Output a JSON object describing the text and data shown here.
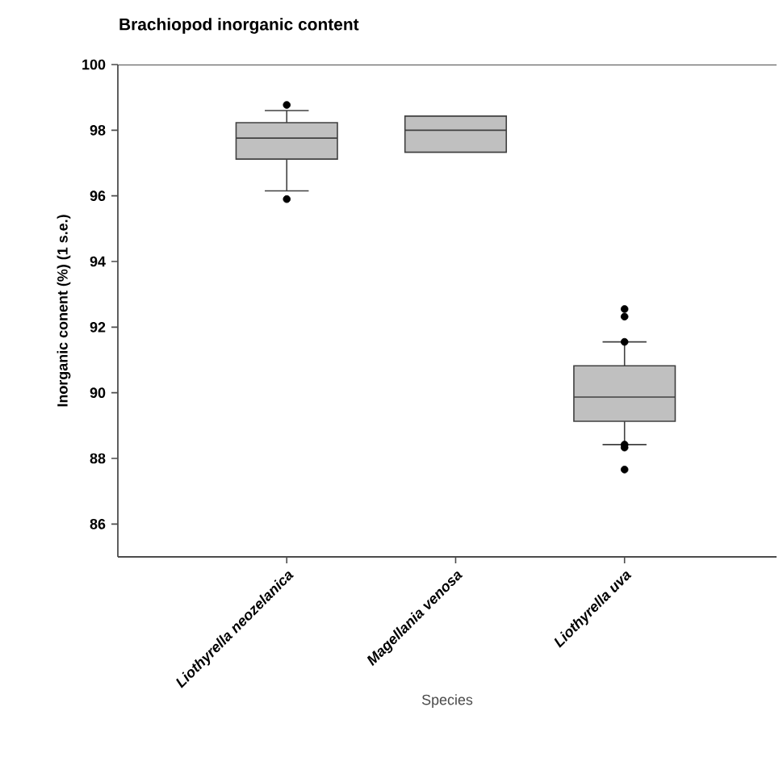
{
  "chart_data": {
    "type": "box",
    "title": "Brachiopod inorganic content",
    "xlabel": "Species",
    "ylabel": "Inorganic conent (%) (1 s.e.)",
    "categories": [
      "Liothyrella neozelanica",
      "Magellania venosa",
      "Liothyrella uva"
    ],
    "color": "#c0c0c0",
    "boxes": [
      {
        "low": 96.15,
        "q1": 97.12,
        "median": 97.76,
        "q3": 98.23,
        "high": 98.6,
        "outliers": [
          98.77,
          95.9
        ]
      },
      {
        "low": 97.33,
        "q1": 97.33,
        "median": 98.0,
        "q3": 98.43,
        "high": 98.43
      },
      {
        "low": 88.42,
        "q1": 89.13,
        "median": 89.87,
        "q3": 90.82,
        "high": 91.55,
        "outliers": [
          92.55,
          92.32,
          91.55,
          88.42,
          88.33,
          87.66
        ]
      }
    ],
    "ylim": [
      85,
      100
    ],
    "yticks": [
      86,
      88,
      90,
      92,
      94,
      96,
      98,
      100
    ],
    "marker": "circle"
  }
}
